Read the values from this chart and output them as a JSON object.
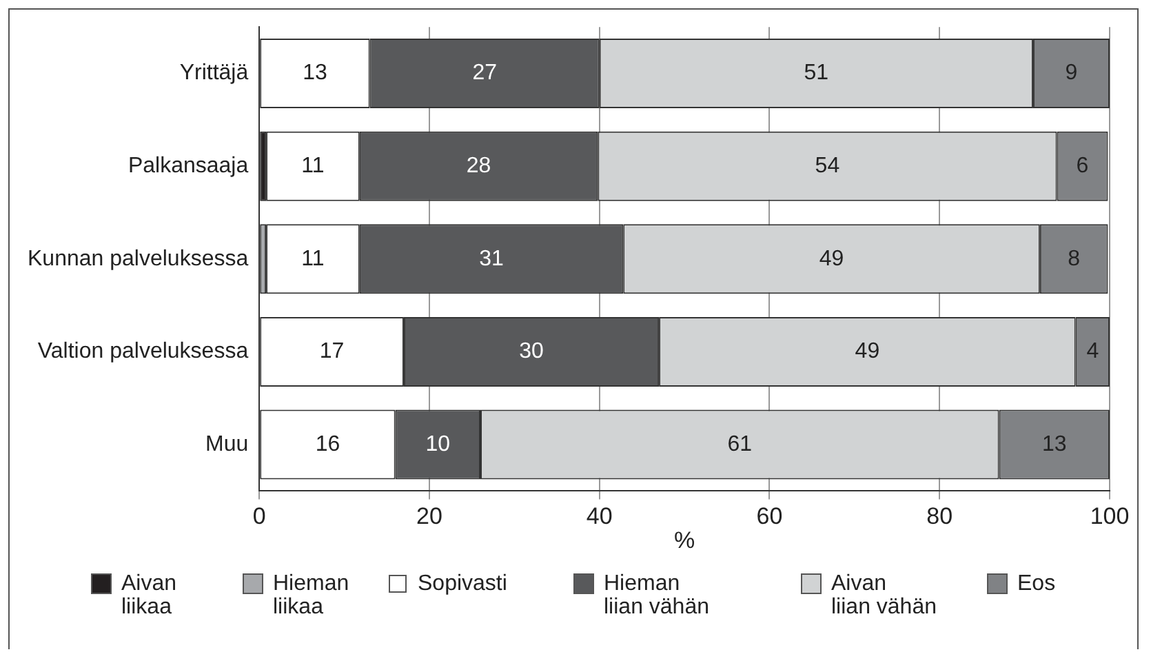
{
  "chart_data": {
    "type": "bar",
    "orientation": "horizontal",
    "stacked": true,
    "xlabel": "%",
    "categories": [
      "Yrittäjä",
      "Palkansaaja",
      "Kunnan palveluksessa",
      "Valtion palveluksessa",
      "Muu"
    ],
    "series": [
      {
        "name": "Aivan liikaa",
        "color": "#231f20",
        "values": [
          0,
          0.8,
          0,
          0,
          0
        ],
        "value_labels": [
          null,
          null,
          null,
          null,
          null
        ]
      },
      {
        "name": "Hieman liikaa",
        "color": "#a7a9ac",
        "values": [
          0,
          0,
          0.8,
          0,
          0
        ],
        "value_labels": [
          null,
          null,
          null,
          null,
          null
        ]
      },
      {
        "name": "Sopivasti",
        "color": "#ffffff",
        "values": [
          13,
          11,
          11,
          17,
          16
        ],
        "value_labels": [
          "13",
          "11",
          "11",
          "17",
          "16"
        ]
      },
      {
        "name": "Hieman liian vähän",
        "color": "#58595b",
        "values": [
          27,
          28,
          31,
          30,
          10
        ],
        "value_labels": [
          "27",
          "28",
          "31",
          "30",
          "10"
        ]
      },
      {
        "name": "Aivan liian vähän",
        "color": "#d1d3d4",
        "values": [
          51,
          54,
          49,
          49,
          61
        ],
        "value_labels": [
          "51",
          "54",
          "49",
          "49",
          "61"
        ]
      },
      {
        "name": "Eos",
        "color": "#808285",
        "values": [
          9,
          6,
          8,
          4,
          13
        ],
        "value_labels": [
          "9",
          "6",
          "8",
          "4",
          "13"
        ]
      }
    ],
    "xlim": [
      0,
      100
    ],
    "xticks": [
      0,
      20,
      40,
      60,
      80,
      100
    ],
    "grid": "x",
    "legend": "bottom"
  }
}
